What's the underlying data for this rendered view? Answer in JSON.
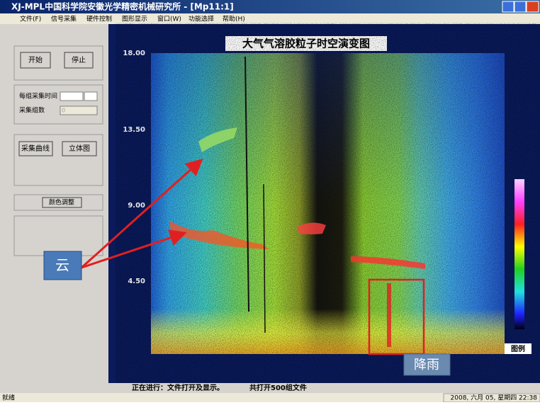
{
  "window": {
    "title": "XJ-MPL中国科学院安徽光学精密机械研究所 - [Mp11:1]"
  },
  "menu": [
    "文件(F)",
    "信号采集",
    "硬件控制",
    "图形显示",
    "窗口(W)",
    "功能选择",
    "帮助(H)"
  ],
  "panel": {
    "start": "开始",
    "stop": "停止",
    "time_label": "每组采集时间",
    "count_label": "采集组数",
    "count_value": "0",
    "curve": "采集曲线",
    "stereo": "立体图",
    "color": "颜色调整"
  },
  "plot": {
    "title": "大气气溶胶粒子时空演变图",
    "y_labels": [
      "18.00",
      "13.50",
      "9.00",
      "4.50"
    ],
    "legend": "图例"
  },
  "annotations": {
    "cloud": "云",
    "rain": "降雨"
  },
  "progress": {
    "status": "正在进行：文件打开及显示。",
    "files": "共打开500组文件"
  },
  "statusbar": {
    "ready": "就绪",
    "datetime": "2008, 六月 05, 星期四 22:38"
  }
}
